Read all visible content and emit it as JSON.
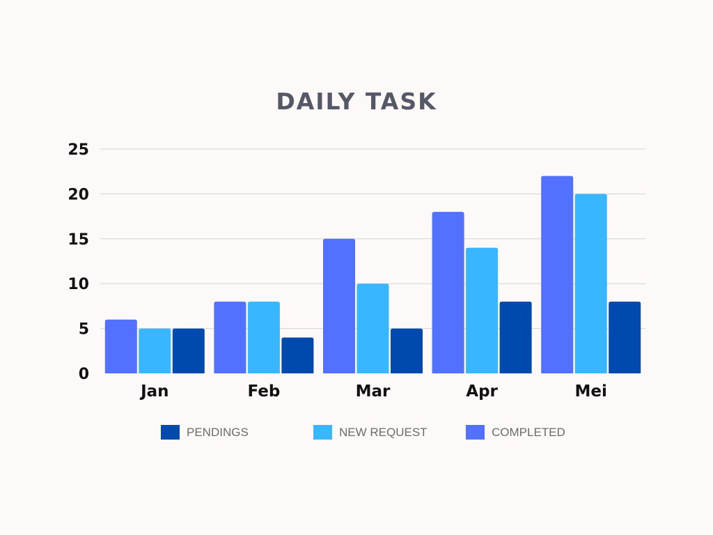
{
  "colors": {
    "background": "#fdf9f8",
    "title": "#555867",
    "gridline": "#d3d3d3",
    "axis_text": "#111111",
    "legend_text": "#6b6b6b"
  },
  "chart_data": {
    "type": "bar",
    "title": "DAILY TASK",
    "xlabel": "",
    "ylabel": "",
    "categories": [
      "Jan",
      "Feb",
      "Mar",
      "Apr",
      "Mei"
    ],
    "ylim": [
      0,
      25
    ],
    "yticks": [
      0,
      5,
      10,
      15,
      20,
      25
    ],
    "grid": true,
    "legend_position": "bottom",
    "series": [
      {
        "name": "COMPLETED",
        "color": "#5271ff",
        "values": [
          6,
          8,
          15,
          18,
          22
        ]
      },
      {
        "name": "NEW REQUEST",
        "color": "#38b6ff",
        "values": [
          5,
          8,
          10,
          14,
          20
        ]
      },
      {
        "name": "PENDINGS",
        "color": "#004aad",
        "values": [
          5,
          4,
          5,
          8,
          8
        ]
      }
    ],
    "legend_order": [
      "PENDINGS",
      "NEW REQUEST",
      "COMPLETED"
    ]
  }
}
